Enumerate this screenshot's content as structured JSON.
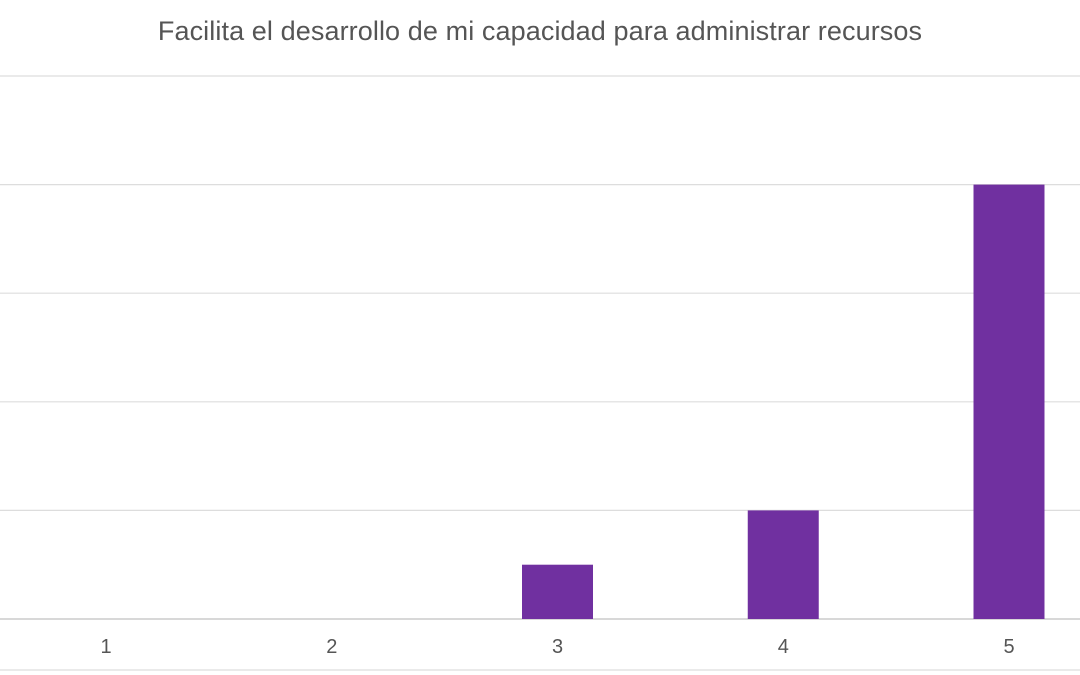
{
  "chart_data": {
    "type": "bar",
    "title": "Facilita el desarrollo de mi capacidad para administrar recursos",
    "categories": [
      "1",
      "2",
      "3",
      "4",
      "5"
    ],
    "series": [
      {
        "values": [
          0,
          0,
          1,
          2,
          8
        ]
      }
    ],
    "xlabel": "",
    "ylabel": "",
    "ylim": [
      0,
      10
    ],
    "grid": true,
    "legend": "none",
    "colors": {
      "bar": "#7030a0",
      "grid": "#dddddd",
      "text": "#555555"
    }
  }
}
